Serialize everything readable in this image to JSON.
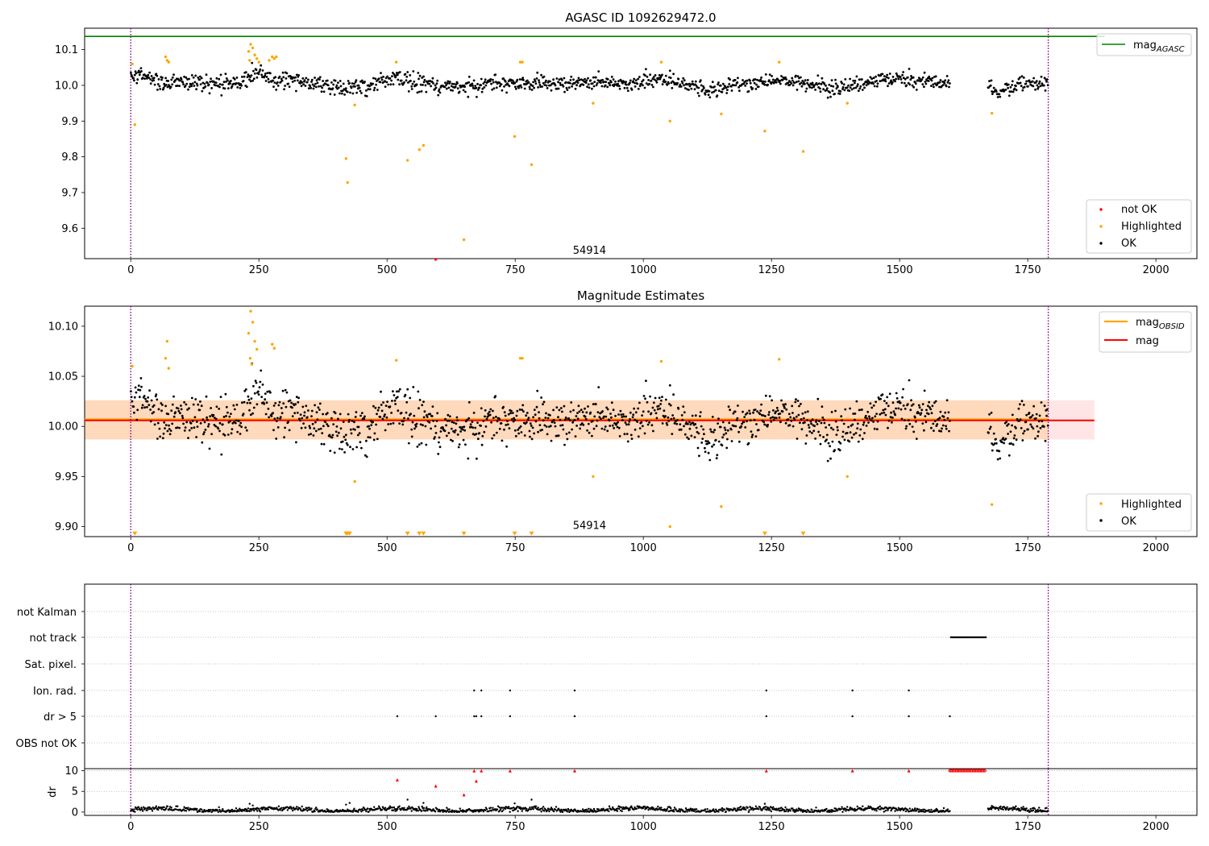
{
  "chart_data": [
    {
      "type": "scatter",
      "title": "AGASC ID 1092629472.0",
      "xlim": [
        -90,
        2080
      ],
      "ylim": [
        9.515,
        10.16
      ],
      "x_ticks": [
        0,
        250,
        500,
        750,
        1000,
        1250,
        1500,
        1750,
        2000
      ],
      "y_ticks": [
        9.6,
        9.7,
        9.8,
        9.9,
        10.0,
        10.1
      ],
      "y_tick_labels": [
        "9.6",
        "9.7",
        "9.8",
        "9.9",
        "10.0",
        "10.1"
      ],
      "vlines_x": [
        0,
        1790
      ],
      "obsid_label": {
        "text": "54914",
        "x": 895,
        "y": 9.54
      },
      "agasc_mag": 10.137,
      "agasc_line_xmax": 1900,
      "legend_upper": [
        {
          "label": "mag",
          "subscript": "AGASC",
          "color": "#008000"
        }
      ],
      "legend_lower": [
        {
          "label": "not OK",
          "color": "#ff0000"
        },
        {
          "label": "Highlighted",
          "color": "#ffa500"
        },
        {
          "label": "OK",
          "color": "#000000"
        }
      ],
      "series": [
        {
          "name": "Highlighted",
          "color": "#ffa500",
          "points": [
            [
              3,
              10.06
            ],
            [
              8,
              9.89
            ],
            [
              68,
              10.08
            ],
            [
              71,
              10.07
            ],
            [
              74,
              10.065
            ],
            [
              230,
              10.095
            ],
            [
              234,
              10.115
            ],
            [
              238,
              10.105
            ],
            [
              242,
              10.085
            ],
            [
              232,
              10.07
            ],
            [
              246,
              10.075
            ],
            [
              250,
              10.065
            ],
            [
              270,
              10.07
            ],
            [
              276,
              10.08
            ],
            [
              280,
              10.075
            ],
            [
              284,
              10.08
            ],
            [
              518,
              10.065
            ],
            [
              760,
              10.065
            ],
            [
              764,
              10.065
            ],
            [
              1035,
              10.065
            ],
            [
              1265,
              10.065
            ],
            [
              420,
              9.795
            ],
            [
              423,
              9.728
            ],
            [
              437,
              9.945
            ],
            [
              540,
              9.79
            ],
            [
              563,
              9.82
            ],
            [
              571,
              9.832
            ],
            [
              650,
              9.568
            ],
            [
              749,
              9.857
            ],
            [
              782,
              9.778
            ],
            [
              902,
              9.95
            ],
            [
              1052,
              9.9
            ],
            [
              1152,
              9.92
            ],
            [
              1237,
              9.872
            ],
            [
              1312,
              9.815
            ],
            [
              1398,
              9.95
            ],
            [
              1680,
              9.922
            ]
          ]
        },
        {
          "name": "not OK",
          "color": "#ff0000",
          "points": [
            [
              595,
              9.513
            ]
          ]
        }
      ]
    },
    {
      "type": "scatter",
      "title": "Magnitude Estimates",
      "xlim": [
        -90,
        2080
      ],
      "ylim": [
        9.89,
        10.12
      ],
      "x_ticks": [
        0,
        250,
        500,
        750,
        1000,
        1250,
        1500,
        1750,
        2000
      ],
      "y_ticks": [
        9.9,
        9.95,
        10.0,
        10.05,
        10.1
      ],
      "y_tick_labels": [
        "9.90",
        "9.95",
        "10.00",
        "10.05",
        "10.10"
      ],
      "vlines_x": [
        0,
        1790
      ],
      "obsid_label": {
        "text": "54914",
        "x": 895,
        "y": 9.9
      },
      "mag": 10.006,
      "mag_band": [
        9.987,
        10.026
      ],
      "mag_line_xmax": 1880,
      "obsid_mag": 10.007,
      "obsid_band": [
        9.987,
        10.026
      ],
      "obsid_line_xmax": 1790,
      "legend_upper": [
        {
          "label": "mag",
          "subscript": "OBSID",
          "color": "#ffa500"
        },
        {
          "label": "mag",
          "subscript": "",
          "color": "#ff0000"
        }
      ],
      "legend_lower": [
        {
          "label": "Highlighted",
          "color": "#ffa500"
        },
        {
          "label": "OK",
          "color": "#000000"
        }
      ],
      "series": [
        {
          "name": "Highlighted",
          "color": "#ffa500",
          "points": [
            [
              3,
              10.06
            ],
            [
              68,
              10.068
            ],
            [
              71,
              10.085
            ],
            [
              74,
              10.058
            ],
            [
              230,
              10.093
            ],
            [
              234,
              10.115
            ],
            [
              238,
              10.104
            ],
            [
              242,
              10.085
            ],
            [
              233,
              10.068
            ],
            [
              236,
              10.062
            ],
            [
              246,
              10.077
            ],
            [
              276,
              10.082
            ],
            [
              280,
              10.078
            ],
            [
              518,
              10.066
            ],
            [
              760,
              10.068
            ],
            [
              764,
              10.068
            ],
            [
              1035,
              10.065
            ],
            [
              1265,
              10.067
            ],
            [
              437,
              9.945
            ],
            [
              902,
              9.95
            ],
            [
              1052,
              9.9
            ],
            [
              1152,
              9.92
            ],
            [
              1398,
              9.95
            ],
            [
              1680,
              9.922
            ]
          ]
        },
        {
          "name": "Highlighted (below axis)",
          "color": "#ffa500",
          "marker": "triangle-down",
          "points": [
            [
              8,
              9.893
            ],
            [
              420,
              9.893
            ],
            [
              423,
              9.893
            ],
            [
              427,
              9.893
            ],
            [
              540,
              9.893
            ],
            [
              563,
              9.893
            ],
            [
              571,
              9.893
            ],
            [
              650,
              9.893
            ],
            [
              749,
              9.893
            ],
            [
              782,
              9.893
            ],
            [
              1237,
              9.893
            ],
            [
              1312,
              9.893
            ]
          ]
        }
      ]
    },
    {
      "type": "scatter",
      "title": "",
      "xlim": [
        -90,
        2080
      ],
      "x_ticks": [
        0,
        250,
        500,
        750,
        1000,
        1250,
        1500,
        1750,
        2000
      ],
      "vlines_x": [
        0,
        1790
      ],
      "flag_labels": [
        "not Kalman",
        "not track",
        "Sat. pixel.",
        "Ion. rad.",
        "dr > 5",
        "OBS not OK"
      ],
      "flag_points": {
        "not track": [
          1600,
          1670
        ],
        "Ion. rad.": [
          670,
          684,
          740,
          866,
          1240,
          1408,
          1518
        ],
        "dr > 5": [
          520,
          595,
          670,
          674,
          684,
          740,
          866,
          1240,
          1408,
          1518,
          1598
        ]
      },
      "dr_ylabel": "dr",
      "dr_ylim": [
        -0.8,
        10.5
      ],
      "dr_ticks": [
        0,
        5,
        10
      ],
      "dr_tick_labels": [
        "0",
        "5",
        "10"
      ],
      "dr_red_points": [
        [
          520,
          7.8
        ],
        [
          595,
          6.3
        ],
        [
          650,
          4.2
        ],
        [
          670,
          10
        ],
        [
          674,
          7.5
        ],
        [
          684,
          10
        ],
        [
          740,
          10
        ],
        [
          866,
          10
        ],
        [
          1240,
          10
        ],
        [
          1408,
          10
        ],
        [
          1518,
          10
        ]
      ],
      "dr_red_range": [
        1598,
        1668
      ],
      "dr_black_extra": [
        [
          232,
          2.0
        ],
        [
          238,
          1.6
        ],
        [
          420,
          1.8
        ],
        [
          427,
          2.2
        ],
        [
          540,
          3.0
        ],
        [
          571,
          2.2
        ],
        [
          749,
          2.1
        ],
        [
          782,
          3.0
        ],
        [
          1052,
          1.2
        ],
        [
          1237,
          2.0
        ],
        [
          1680,
          1.5
        ]
      ],
      "legend_upper": [],
      "legend_lower": []
    }
  ]
}
